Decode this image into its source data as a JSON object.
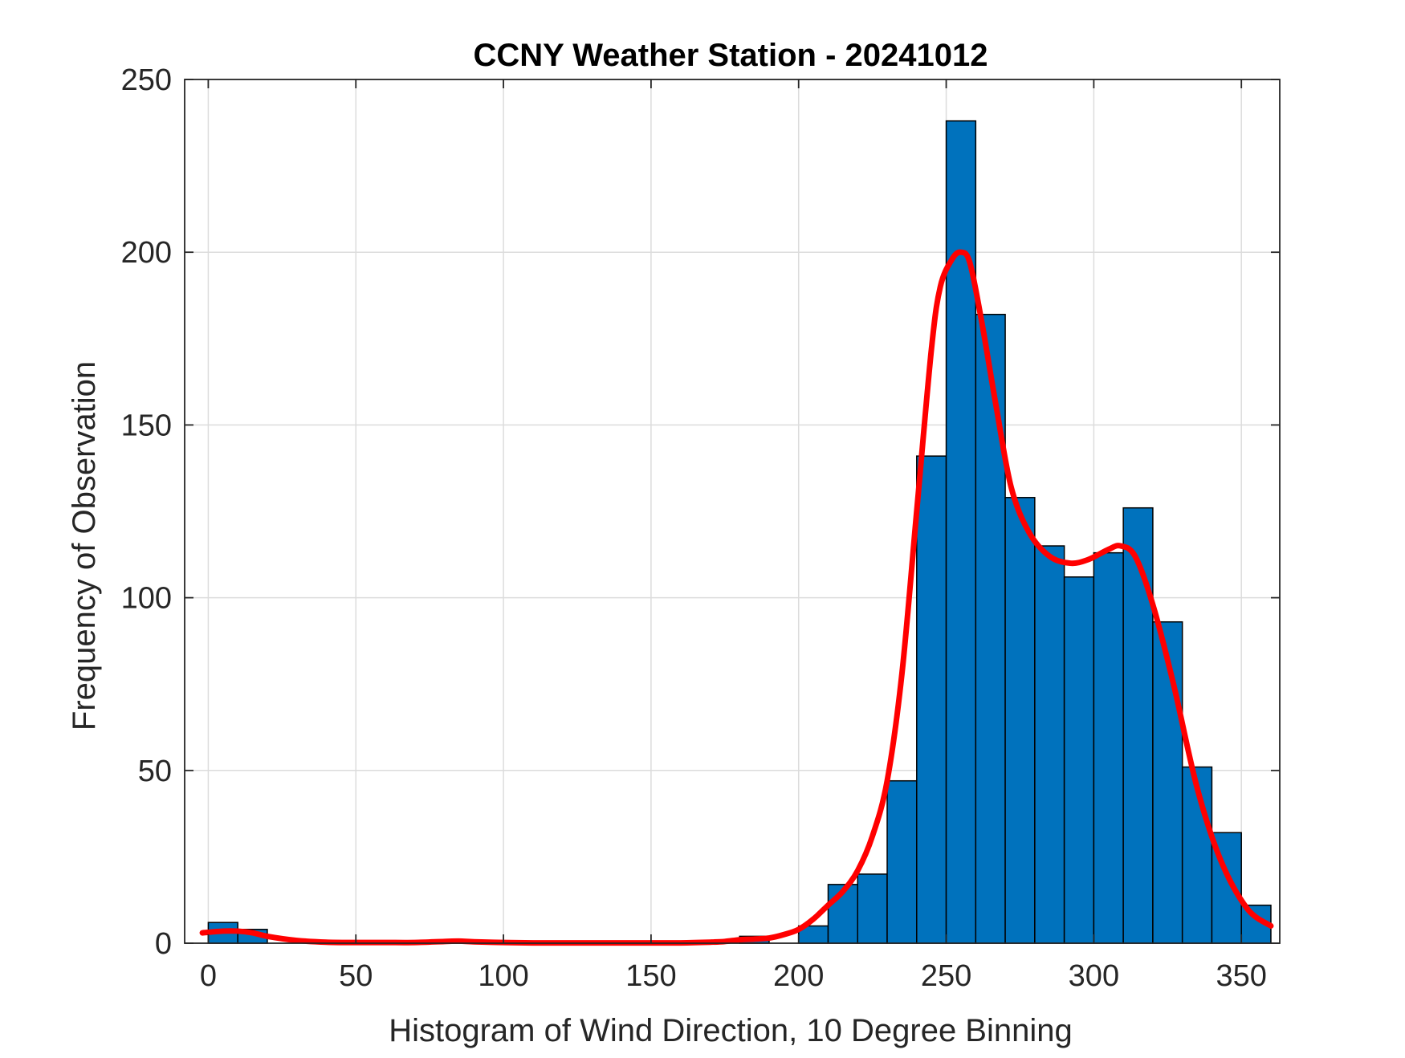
{
  "chart_data": {
    "type": "bar",
    "title": "CCNY Weather Station - 20241012",
    "xlabel": "Histogram of Wind Direction, 10 Degree Binning",
    "ylabel": "Frequency of Observation",
    "xlim": [
      -8,
      363
    ],
    "ylim": [
      0,
      250
    ],
    "xticks": [
      0,
      50,
      100,
      150,
      200,
      250,
      300,
      350
    ],
    "yticks": [
      0,
      50,
      100,
      150,
      200,
      250
    ],
    "grid": true,
    "bin_edges": [
      0,
      10,
      20,
      30,
      40,
      50,
      60,
      70,
      80,
      90,
      100,
      110,
      120,
      130,
      140,
      150,
      160,
      170,
      180,
      190,
      200,
      210,
      220,
      230,
      240,
      250,
      260,
      270,
      280,
      290,
      300,
      310,
      320,
      330,
      340,
      350,
      360
    ],
    "values": [
      6,
      4,
      0,
      0,
      0,
      0,
      0,
      0,
      0,
      0,
      0,
      0,
      0,
      0,
      0,
      0,
      0,
      0,
      2,
      0,
      5,
      17,
      20,
      47,
      141,
      238,
      182,
      129,
      115,
      106,
      113,
      126,
      93,
      51,
      32,
      11
    ],
    "bar_color": "#0072BD",
    "bar_edge_color": "#000000",
    "curve_color": "#FF0000",
    "curve": {
      "x": [
        -2,
        5,
        10,
        15,
        20,
        30,
        40,
        50,
        60,
        70,
        80,
        85,
        90,
        100,
        110,
        120,
        130,
        140,
        150,
        160,
        170,
        175,
        180,
        185,
        190,
        195,
        200,
        205,
        210,
        215,
        220,
        225,
        230,
        235,
        240,
        245,
        248,
        252,
        255,
        258,
        262,
        267,
        272,
        278,
        285,
        292,
        298,
        305,
        309,
        314,
        320,
        327,
        335,
        343,
        352,
        360
      ],
      "y": [
        3,
        3.5,
        3.5,
        3,
        2,
        0.8,
        0.3,
        0.2,
        0.2,
        0.2,
        0.5,
        0.6,
        0.4,
        0.2,
        0.1,
        0.1,
        0.1,
        0.1,
        0.1,
        0.1,
        0.3,
        0.5,
        1,
        1.2,
        1.5,
        2.5,
        4,
        7,
        11,
        15,
        21,
        31,
        47,
        78,
        125,
        172,
        190,
        198,
        200,
        197,
        180,
        155,
        132,
        119,
        112,
        110,
        111,
        114,
        115,
        112,
        98,
        75,
        45,
        24,
        10,
        5
      ]
    }
  }
}
